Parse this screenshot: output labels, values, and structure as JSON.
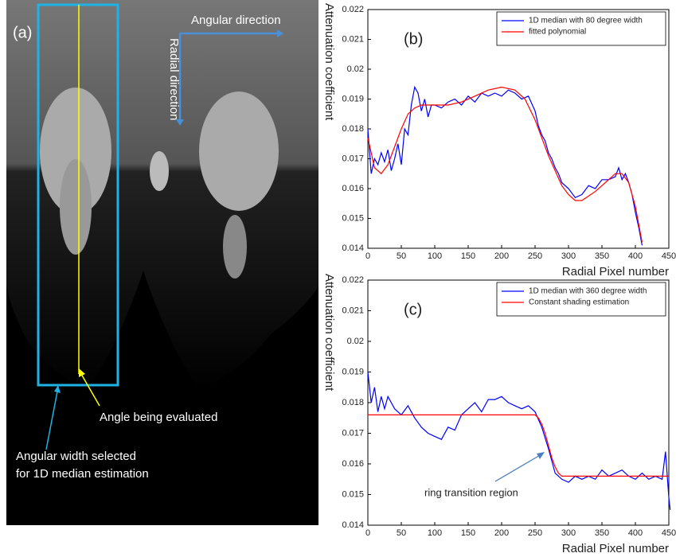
{
  "image_panel": {
    "label": "(a)",
    "angular_direction": "Angular direction",
    "radial_direction": "Radial direction",
    "angle_note": "Angle being evaluated",
    "width_note": [
      "Angular width selected",
      "for 1D median estimation"
    ]
  },
  "chart_data": [
    {
      "type": "line",
      "label": "(b)",
      "xlabel": "Radial Pixel number",
      "ylabel": "Attenuation coefficient",
      "xlim": [
        0,
        450
      ],
      "xticks": [
        0,
        50,
        100,
        150,
        200,
        250,
        300,
        350,
        400,
        450
      ],
      "ylim": [
        0.014,
        0.022
      ],
      "yticks": [
        0.014,
        0.015,
        0.016,
        0.017,
        0.018,
        0.019,
        0.02,
        0.021,
        0.022
      ],
      "legend": "top-right",
      "series": [
        {
          "name": "1D median with 80 degree width",
          "color": "#0000ff",
          "x": [
            0,
            5,
            10,
            15,
            20,
            25,
            30,
            35,
            40,
            45,
            50,
            55,
            60,
            65,
            70,
            75,
            80,
            85,
            90,
            95,
            100,
            110,
            120,
            130,
            140,
            150,
            160,
            170,
            180,
            190,
            200,
            210,
            220,
            230,
            240,
            250,
            255,
            260,
            265,
            270,
            275,
            280,
            285,
            290,
            300,
            310,
            320,
            330,
            340,
            350,
            360,
            370,
            375,
            380,
            385,
            390,
            395,
            400,
            405,
            410
          ],
          "values": [
            0.018,
            0.0165,
            0.017,
            0.0168,
            0.0172,
            0.0169,
            0.0173,
            0.0166,
            0.017,
            0.0175,
            0.0168,
            0.018,
            0.0178,
            0.0188,
            0.0194,
            0.0192,
            0.0186,
            0.019,
            0.0184,
            0.0188,
            0.0188,
            0.0187,
            0.0189,
            0.019,
            0.0188,
            0.0191,
            0.0189,
            0.0192,
            0.0191,
            0.0192,
            0.0191,
            0.0193,
            0.0192,
            0.019,
            0.0191,
            0.0186,
            0.0181,
            0.0178,
            0.0176,
            0.0172,
            0.017,
            0.0167,
            0.0165,
            0.0162,
            0.016,
            0.0157,
            0.0158,
            0.0161,
            0.016,
            0.0163,
            0.0163,
            0.0164,
            0.0167,
            0.0163,
            0.0165,
            0.0162,
            0.0158,
            0.0152,
            0.0147,
            0.0141
          ]
        },
        {
          "name": "fitted polynomial",
          "color": "#ff0000",
          "x": [
            0,
            10,
            20,
            30,
            40,
            50,
            60,
            70,
            80,
            100,
            120,
            140,
            160,
            180,
            200,
            220,
            235,
            250,
            260,
            270,
            280,
            290,
            300,
            310,
            320,
            340,
            360,
            370,
            380,
            390,
            400,
            410
          ],
          "values": [
            0.0177,
            0.0167,
            0.0165,
            0.0168,
            0.0174,
            0.018,
            0.0185,
            0.0187,
            0.0188,
            0.0188,
            0.0188,
            0.0189,
            0.0191,
            0.0193,
            0.0194,
            0.0193,
            0.019,
            0.0183,
            0.0177,
            0.0171,
            0.0166,
            0.0161,
            0.0158,
            0.0156,
            0.0156,
            0.0159,
            0.0163,
            0.0165,
            0.0165,
            0.0162,
            0.0154,
            0.0142
          ]
        }
      ]
    },
    {
      "type": "line",
      "label": "(c)",
      "xlabel": "Radial Pixel number",
      "ylabel": "Attenuation coefficient",
      "xlim": [
        0,
        450
      ],
      "xticks": [
        0,
        50,
        100,
        150,
        200,
        250,
        300,
        350,
        400,
        450
      ],
      "ylim": [
        0.014,
        0.022
      ],
      "yticks": [
        0.014,
        0.015,
        0.016,
        0.017,
        0.018,
        0.019,
        0.02,
        0.021,
        0.022
      ],
      "legend": "top-right",
      "annotation": "ring transition region",
      "series": [
        {
          "name": "1D median with 360 degree width",
          "color": "#0000ff",
          "x": [
            0,
            5,
            10,
            15,
            20,
            25,
            30,
            40,
            50,
            60,
            70,
            80,
            90,
            100,
            110,
            120,
            130,
            140,
            150,
            160,
            170,
            180,
            190,
            200,
            210,
            220,
            230,
            240,
            250,
            260,
            270,
            280,
            290,
            300,
            310,
            320,
            330,
            340,
            350,
            360,
            370,
            380,
            390,
            400,
            410,
            420,
            430,
            440,
            445,
            450,
            452
          ],
          "values": [
            0.019,
            0.018,
            0.0185,
            0.0177,
            0.0182,
            0.0178,
            0.0182,
            0.0178,
            0.0176,
            0.0179,
            0.0175,
            0.0172,
            0.017,
            0.0169,
            0.0168,
            0.0172,
            0.0171,
            0.0176,
            0.0178,
            0.018,
            0.0177,
            0.0181,
            0.0181,
            0.0182,
            0.018,
            0.0179,
            0.0178,
            0.0179,
            0.0177,
            0.0172,
            0.0165,
            0.0157,
            0.0155,
            0.0154,
            0.0156,
            0.0155,
            0.0156,
            0.0155,
            0.0158,
            0.0156,
            0.0157,
            0.0158,
            0.0156,
            0.0155,
            0.0157,
            0.0155,
            0.0156,
            0.0155,
            0.0164,
            0.0149,
            0.0145
          ]
        },
        {
          "name": "Constant shading estimation",
          "color": "#ff0000",
          "x": [
            0,
            240,
            250,
            255,
            260,
            265,
            270,
            275,
            280,
            285,
            290,
            450
          ],
          "values": [
            0.0176,
            0.0176,
            0.0176,
            0.0175,
            0.0173,
            0.017,
            0.0166,
            0.0162,
            0.0159,
            0.0157,
            0.0156,
            0.0156
          ]
        }
      ]
    }
  ]
}
